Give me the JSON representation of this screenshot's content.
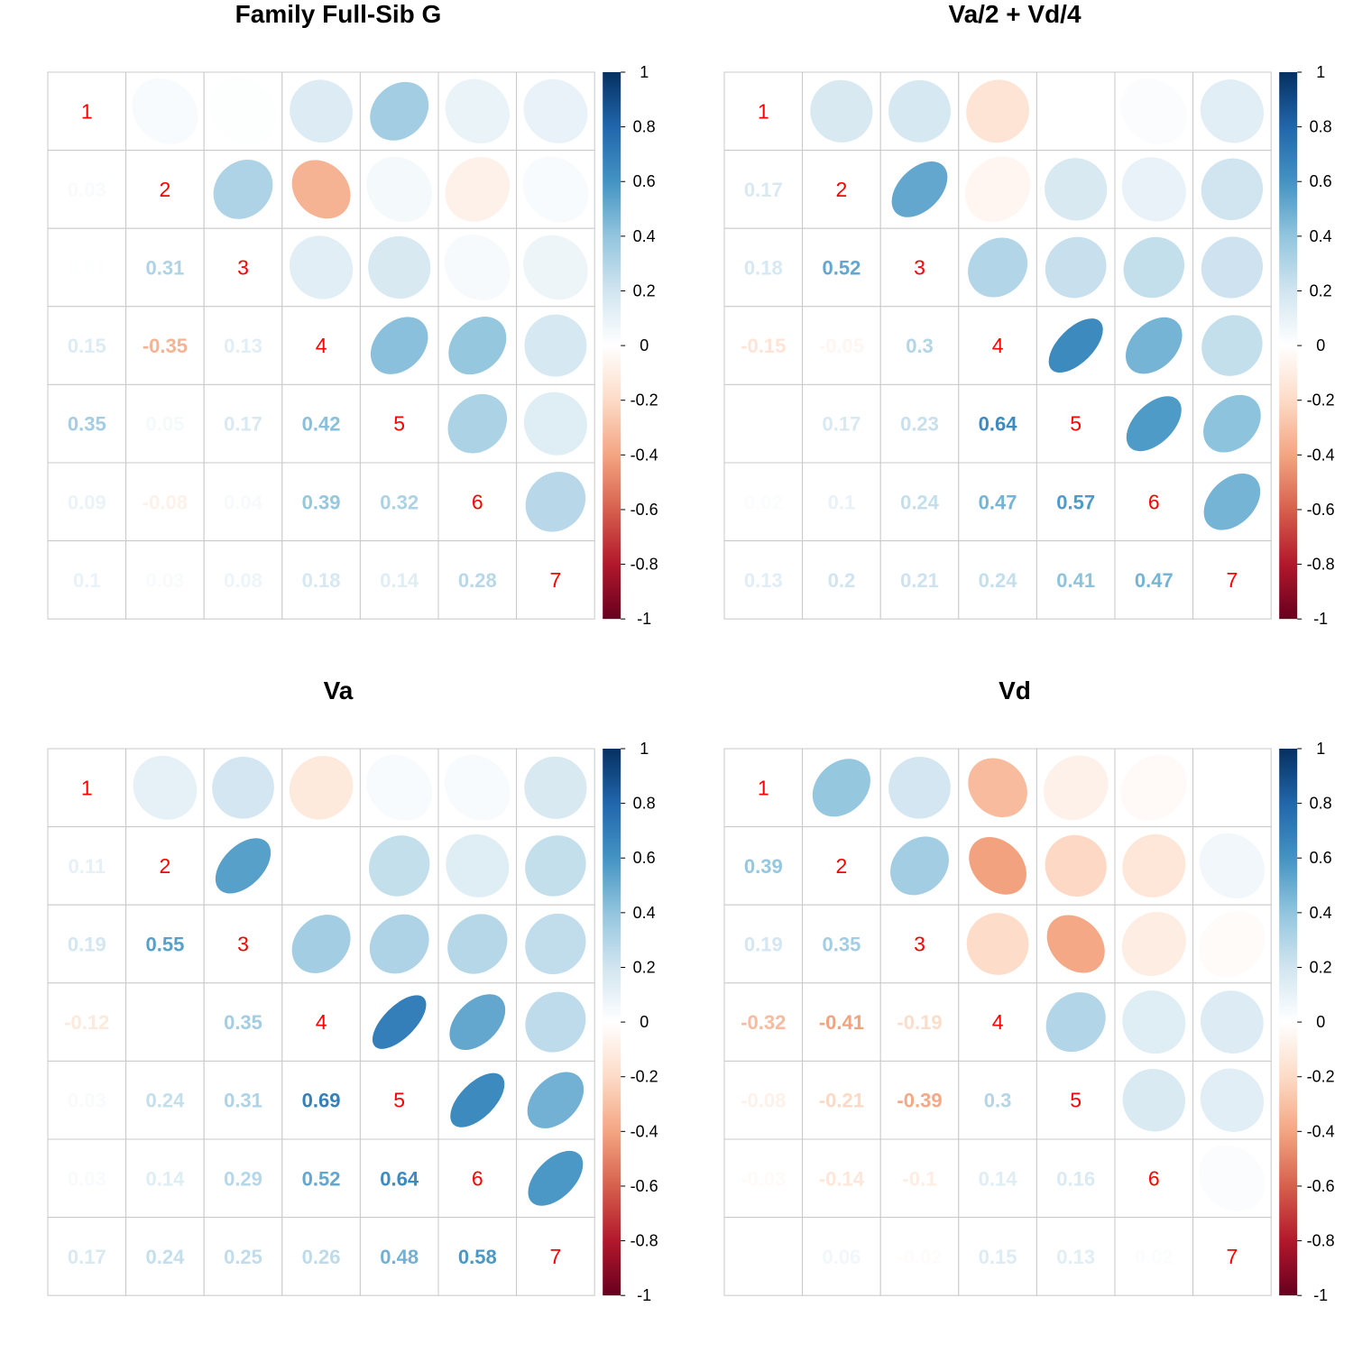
{
  "chart_data": [
    {
      "type": "heatmap",
      "title": "Family Full-Sib G",
      "labels": [
        "1",
        "2",
        "3",
        "4",
        "5",
        "6",
        "7"
      ],
      "matrix": [
        [
          1,
          0.03,
          0.01,
          0.15,
          0.35,
          0.09,
          0.1
        ],
        [
          0.03,
          1,
          0.31,
          -0.35,
          0.05,
          -0.08,
          0.03
        ],
        [
          0.01,
          0.31,
          1,
          0.13,
          0.17,
          0.04,
          0.08
        ],
        [
          0.15,
          -0.35,
          0.13,
          1,
          0.42,
          0.39,
          0.18
        ],
        [
          0.35,
          0.05,
          0.17,
          0.42,
          1,
          0.32,
          0.14
        ],
        [
          0.09,
          -0.08,
          0.04,
          0.39,
          0.32,
          1,
          0.28
        ],
        [
          0.1,
          0.03,
          0.08,
          0.18,
          0.14,
          0.28,
          1
        ]
      ],
      "lower": "number",
      "upper": "ellipse",
      "colorbar": {
        "ticks": [
          "1",
          "0.8",
          "0.6",
          "0.4",
          "0.2",
          "0",
          "-0.2",
          "-0.4",
          "-0.6",
          "-0.8",
          "-1"
        ],
        "range": [
          -1,
          1
        ]
      }
    },
    {
      "type": "heatmap",
      "title": "Va/2 + Vd/4",
      "labels": [
        "1",
        "2",
        "3",
        "4",
        "5",
        "6",
        "7"
      ],
      "matrix": [
        [
          1,
          0.17,
          0.18,
          -0.15,
          0.0,
          0.02,
          0.13
        ],
        [
          0.17,
          1,
          0.52,
          -0.05,
          0.17,
          0.1,
          0.2
        ],
        [
          0.18,
          0.52,
          1,
          0.3,
          0.23,
          0.24,
          0.21
        ],
        [
          -0.15,
          -0.05,
          0.3,
          1,
          0.64,
          0.47,
          0.24
        ],
        [
          0.0,
          0.17,
          0.23,
          0.64,
          1,
          0.57,
          0.41
        ],
        [
          0.02,
          0.1,
          0.24,
          0.47,
          0.57,
          1,
          0.47
        ],
        [
          0.13,
          0.2,
          0.21,
          0.24,
          0.41,
          0.47,
          1
        ]
      ],
      "lower": "number",
      "upper": "ellipse",
      "colorbar": {
        "ticks": [
          "1",
          "0.8",
          "0.6",
          "0.4",
          "0.2",
          "0",
          "-0.2",
          "-0.4",
          "-0.6",
          "-0.8",
          "-1"
        ],
        "range": [
          -1,
          1
        ]
      }
    },
    {
      "type": "heatmap",
      "title": "Va",
      "labels": [
        "1",
        "2",
        "3",
        "4",
        "5",
        "6",
        "7"
      ],
      "matrix": [
        [
          1,
          0.11,
          0.19,
          -0.12,
          0.03,
          0.03,
          0.17
        ],
        [
          0.11,
          1,
          0.55,
          0.0,
          0.24,
          0.14,
          0.24
        ],
        [
          0.19,
          0.55,
          1,
          0.35,
          0.31,
          0.29,
          0.25
        ],
        [
          -0.12,
          0.0,
          0.35,
          1,
          0.69,
          0.52,
          0.26
        ],
        [
          0.03,
          0.24,
          0.31,
          0.69,
          1,
          0.64,
          0.48
        ],
        [
          0.03,
          0.14,
          0.29,
          0.52,
          0.64,
          1,
          0.58
        ],
        [
          0.17,
          0.24,
          0.25,
          0.26,
          0.48,
          0.58,
          1
        ]
      ],
      "lower": "number",
      "upper": "ellipse",
      "colorbar": {
        "ticks": [
          "1",
          "0.8",
          "0.6",
          "0.4",
          "0.2",
          "0",
          "-0.2",
          "-0.4",
          "-0.6",
          "-0.8",
          "-1"
        ],
        "range": [
          -1,
          1
        ]
      }
    },
    {
      "type": "heatmap",
      "title": "Vd",
      "labels": [
        "1",
        "2",
        "3",
        "4",
        "5",
        "6",
        "7"
      ],
      "matrix": [
        [
          1,
          0.39,
          0.19,
          -0.32,
          -0.08,
          -0.03,
          0.0
        ],
        [
          0.39,
          1,
          0.35,
          -0.41,
          -0.21,
          -0.14,
          0.06
        ],
        [
          0.19,
          0.35,
          1,
          -0.19,
          -0.39,
          -0.1,
          -0.02
        ],
        [
          -0.32,
          -0.41,
          -0.19,
          1,
          0.3,
          0.14,
          0.15
        ],
        [
          -0.08,
          -0.21,
          -0.39,
          0.3,
          1,
          0.16,
          0.13
        ],
        [
          -0.03,
          -0.14,
          -0.1,
          0.14,
          0.16,
          1,
          0.02
        ],
        [
          0.0,
          0.06,
          -0.02,
          0.15,
          0.13,
          0.02,
          1
        ]
      ],
      "lower": "number",
      "upper": "ellipse",
      "colorbar": {
        "ticks": [
          "1",
          "0.8",
          "0.6",
          "0.4",
          "0.2",
          "0",
          "-0.2",
          "-0.4",
          "-0.6",
          "-0.8",
          "-1"
        ],
        "range": [
          -1,
          1
        ]
      }
    }
  ]
}
